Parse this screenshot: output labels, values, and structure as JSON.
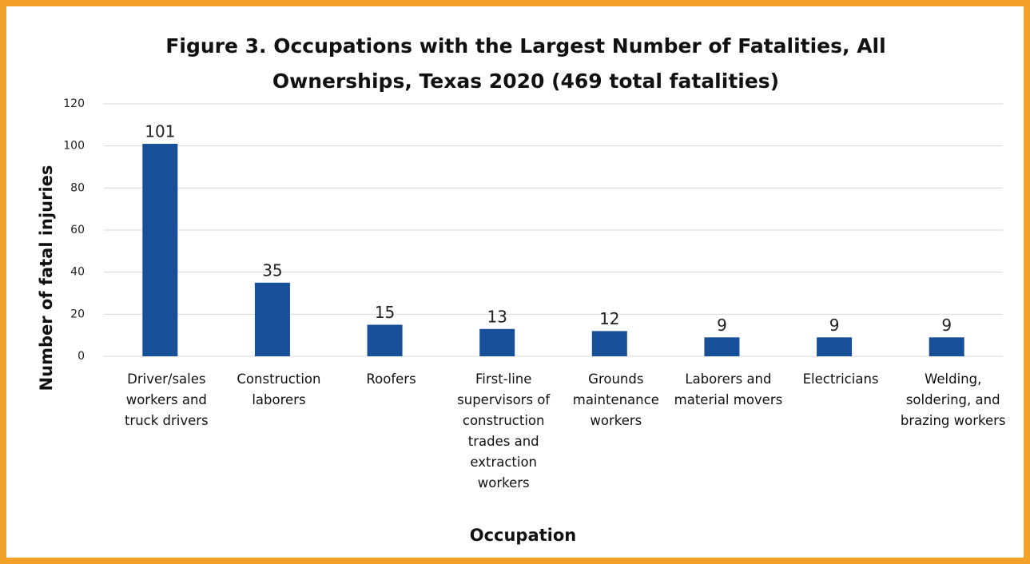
{
  "chart_data": {
    "type": "bar",
    "title": "Figure 3. Occupations with the Largest Number of Fatalities, All Ownerships, Texas 2020 (469 total fatalities)",
    "x_label": "Occupation",
    "y_label": "Number of fatal injuries",
    "categories": [
      "Driver/sales workers and truck drivers",
      "Construction laborers",
      "Roofers",
      "First-line supervisors of construction trades and extraction workers",
      "Grounds maintenance workers",
      "Laborers and material movers",
      "Electricians",
      "Welding, soldering, and brazing workers"
    ],
    "values": [
      101,
      35,
      15,
      13,
      12,
      9,
      9,
      9
    ],
    "color": "#174f98",
    "ylim": [
      0,
      120
    ],
    "yticks": [
      0,
      20,
      40,
      60,
      80,
      100,
      120
    ],
    "grid": true
  }
}
